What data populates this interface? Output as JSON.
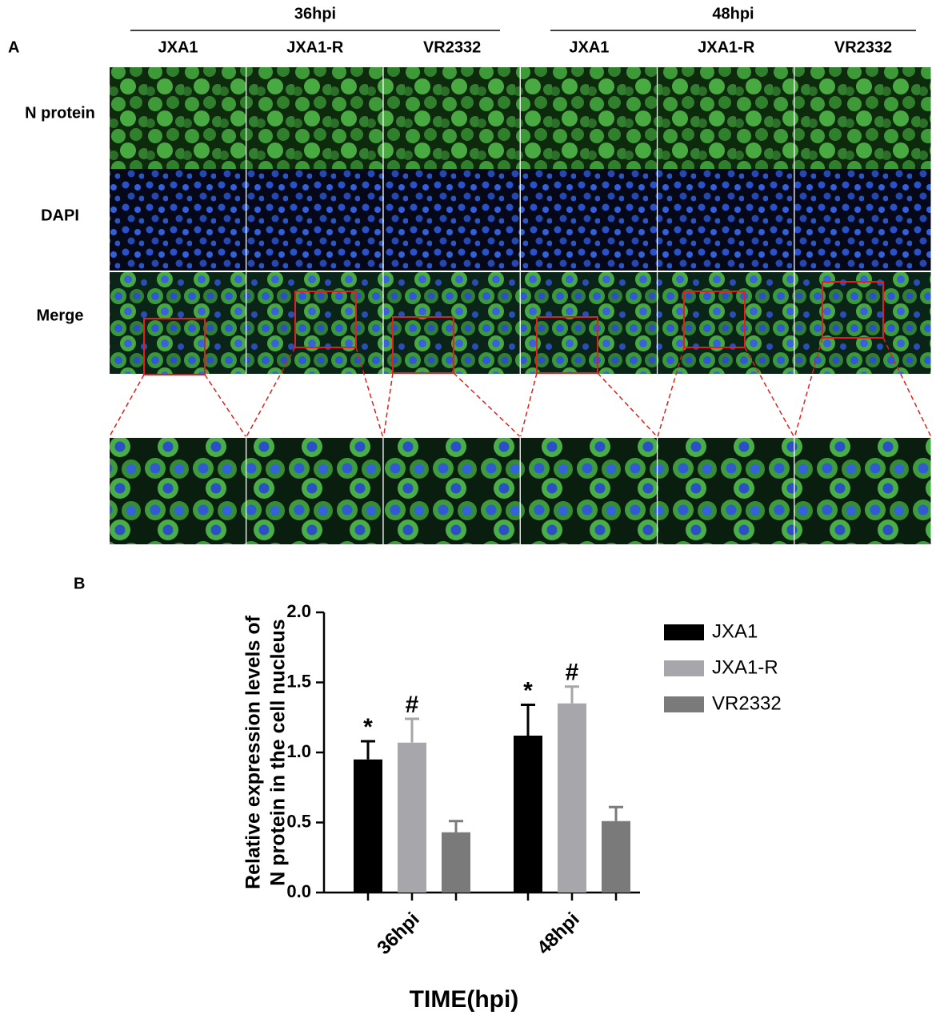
{
  "panel_a": {
    "label": "A",
    "time_points": [
      "36hpi",
      "48hpi"
    ],
    "strains": [
      "JXA1",
      "JXA1-R",
      "VR2332",
      "JXA1",
      "JXA1-R",
      "VR2332"
    ],
    "rows": [
      "N protein",
      "DAPI",
      "Merge"
    ]
  },
  "chart_data": {
    "type": "bar",
    "panel_label": "B",
    "ylabel": [
      "Relative expression levels of",
      "N protein in the cell nucleus"
    ],
    "xlabel": "TIME(hpi)",
    "categories": [
      "36hpi",
      "48hpi"
    ],
    "series": [
      {
        "name": "JXA1",
        "color": "#000000",
        "values": [
          0.95,
          1.12
        ],
        "errors": [
          0.13,
          0.22
        ],
        "annotations": [
          "*",
          "*"
        ]
      },
      {
        "name": "JXA1-R",
        "color": "#a6a6ab",
        "values": [
          1.07,
          1.35
        ],
        "errors": [
          0.17,
          0.12
        ],
        "annotations": [
          "#",
          "#"
        ]
      },
      {
        "name": "VR2332",
        "color": "#7a7a7a",
        "values": [
          0.43,
          0.51
        ],
        "errors": [
          0.08,
          0.1
        ]
      }
    ],
    "ylim": [
      0,
      2
    ],
    "yticks": [
      {
        "value": 0,
        "label": "0.0"
      },
      {
        "value": 0.5,
        "label": "0.5"
      },
      {
        "value": 1,
        "label": "1.0"
      },
      {
        "value": 1.5,
        "label": "1.5"
      },
      {
        "value": 2,
        "label": "2.0"
      }
    ]
  }
}
